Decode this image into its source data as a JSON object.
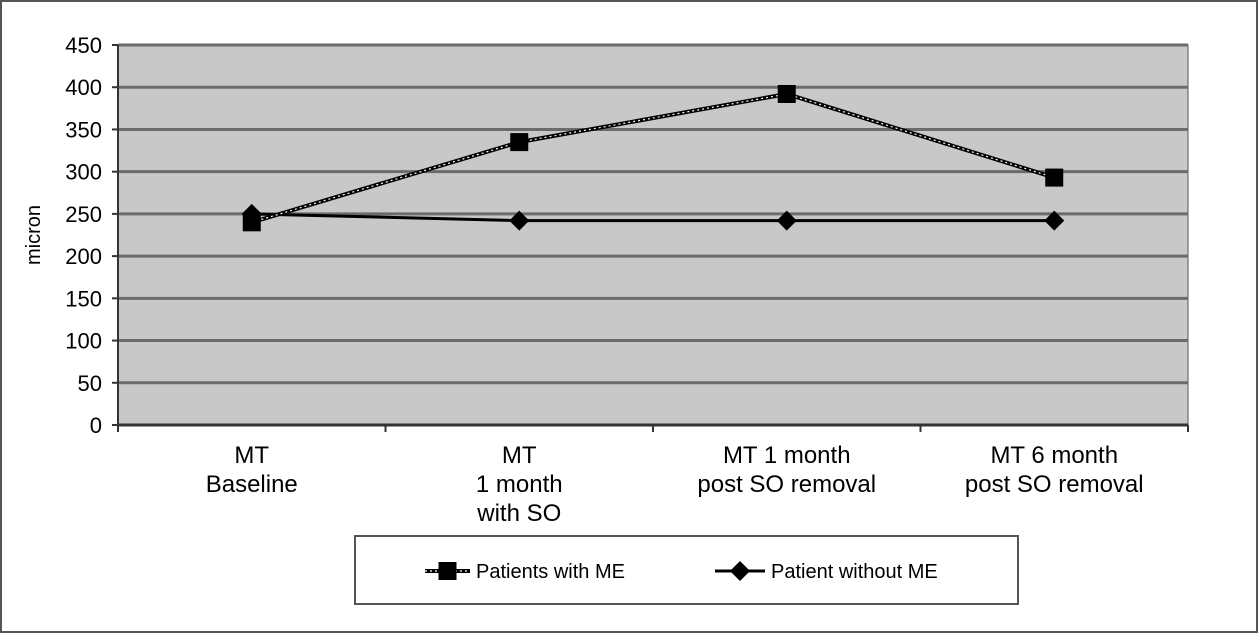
{
  "chart_data": {
    "type": "line",
    "categories": [
      [
        "MT",
        "Baseline"
      ],
      [
        "MT",
        "1 month",
        "with SO"
      ],
      [
        "MT 1 month",
        "post SO removal"
      ],
      [
        "MT 6 month",
        "post SO removal"
      ]
    ],
    "ylabel": "micron",
    "ylim": [
      0,
      450
    ],
    "yticks": [
      "0",
      "50",
      "100",
      "150",
      "200",
      "250",
      "300",
      "350",
      "400",
      "450"
    ],
    "ytick_values": [
      0,
      50,
      100,
      150,
      200,
      250,
      300,
      350,
      400,
      450
    ],
    "grid": true,
    "legend_position": "bottom",
    "series": [
      {
        "name": "Patients with ME",
        "marker": "square",
        "line": "dotted",
        "values": [
          240,
          335,
          392,
          293
        ]
      },
      {
        "name": "Patient without ME",
        "marker": "diamond",
        "line": "solid",
        "values": [
          250,
          242,
          242,
          242
        ]
      }
    ],
    "colors": {
      "plot_bg": "#c8c8c8",
      "grid": "#6b6b6b",
      "series": "#000000"
    }
  }
}
